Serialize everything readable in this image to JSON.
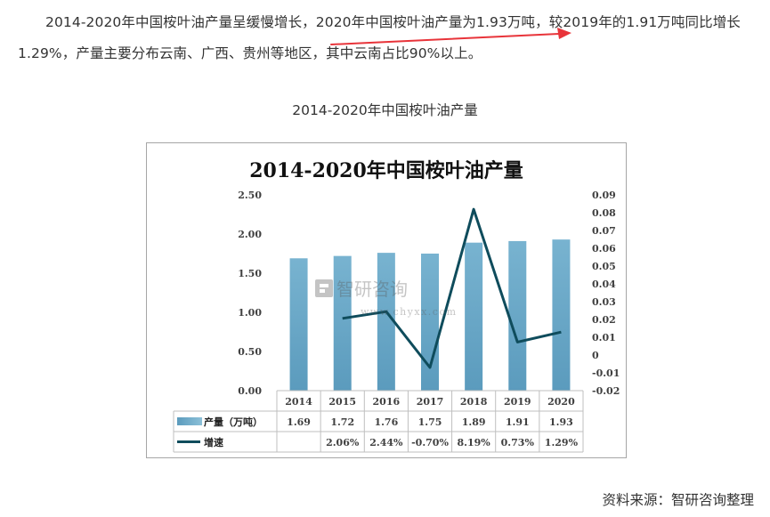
{
  "article": {
    "paragraph": "2014-2020年中国桉叶油产量呈缓慢增长，2020年中国桉叶油产量为1.93万吨，较2019年的1.91万吨同比增长1.29%，产量主要分布云南、广西、贵州等地区，其中云南占比90%以上。",
    "caption": "2014-2020年中国桉叶油产量",
    "source": "资料来源：智研咨询整理"
  },
  "watermark": {
    "brand": "智研咨询",
    "url": "www.chyxx.com"
  },
  "colors": {
    "bar": "#5b9bbd",
    "line": "#0f4c5c",
    "arrow": "#e8343a",
    "grid": "#d9d9d9"
  },
  "chart_data": {
    "type": "bar",
    "title": "2014-2020年中国桉叶油产量",
    "categories": [
      "2014",
      "2015",
      "2016",
      "2017",
      "2018",
      "2019",
      "2020"
    ],
    "series": [
      {
        "name": "产量（万吨）",
        "kind": "bar",
        "axis": "left",
        "values": [
          1.69,
          1.72,
          1.76,
          1.75,
          1.89,
          1.91,
          1.93
        ],
        "table_labels": [
          "1.69",
          "1.72",
          "1.76",
          "1.75",
          "1.89",
          "1.91",
          "1.93"
        ]
      },
      {
        "name": "增速",
        "kind": "line",
        "axis": "right",
        "values": [
          null,
          0.0206,
          0.0244,
          -0.007,
          0.0819,
          0.0073,
          0.0129
        ],
        "table_labels": [
          "",
          "2.06%",
          "2.44%",
          "-0.70%",
          "8.19%",
          "0.73%",
          "1.29%"
        ]
      }
    ],
    "y_left": {
      "range": [
        0,
        2.5
      ],
      "ticks": [
        "0.00",
        "0.50",
        "1.00",
        "1.50",
        "2.00",
        "2.50"
      ]
    },
    "y_right": {
      "range": [
        -0.02,
        0.09
      ],
      "ticks": [
        "-0.02",
        "-0.01",
        "0",
        "0.01",
        "0.02",
        "0.03",
        "0.04",
        "0.05",
        "0.06",
        "0.07",
        "0.08",
        "0.09"
      ]
    },
    "grid": false,
    "legend": "data-table"
  }
}
